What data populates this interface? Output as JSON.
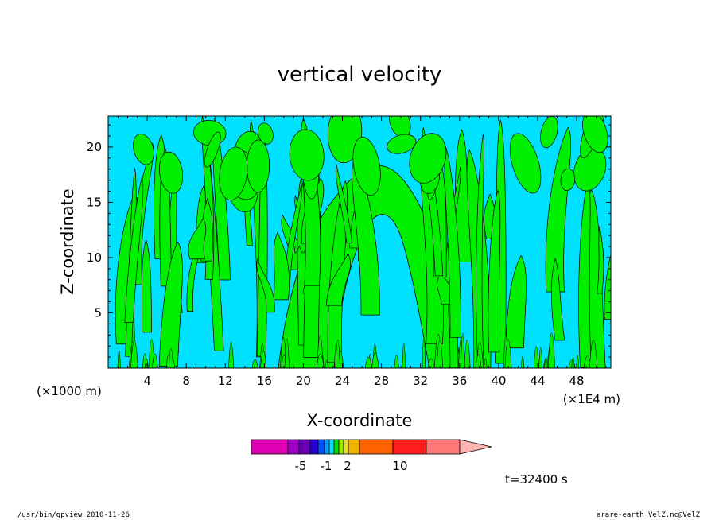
{
  "chart_data": {
    "type": "heatmap",
    "title": "vertical velocity",
    "xlabel": "X-coordinate",
    "ylabel": "Z-coordinate",
    "x_unit_left": "(×1000 m)",
    "x_unit_right": "(×1E4 m)",
    "xlim": [
      0,
      51.5
    ],
    "ylim": [
      0,
      22.8
    ],
    "x_ticks": [
      4,
      8,
      12,
      16,
      20,
      24,
      28,
      32,
      36,
      40,
      44,
      48
    ],
    "y_ticks": [
      5,
      10,
      15,
      20
    ],
    "grid": false,
    "colorbar": {
      "colors": [
        "#e000b4",
        "#a000c8",
        "#6a00b4",
        "#2a00d2",
        "#0050ff",
        "#00a0ff",
        "#00e0ff",
        "#00e000",
        "#a0e600",
        "#e6dc32",
        "#f0b400",
        "#ff6400",
        "#ff1e1e",
        "#ff7878",
        "#ffb4b4"
      ],
      "tick_labels": [
        "-5",
        "-1",
        "2",
        "10"
      ],
      "position": "bottom-center"
    },
    "annotation": "t=32400 s",
    "footer_left": "/usr/bin/gpview   2010-11-26",
    "footer_right": "arare-earth_VelZ.nc@VelZ"
  }
}
